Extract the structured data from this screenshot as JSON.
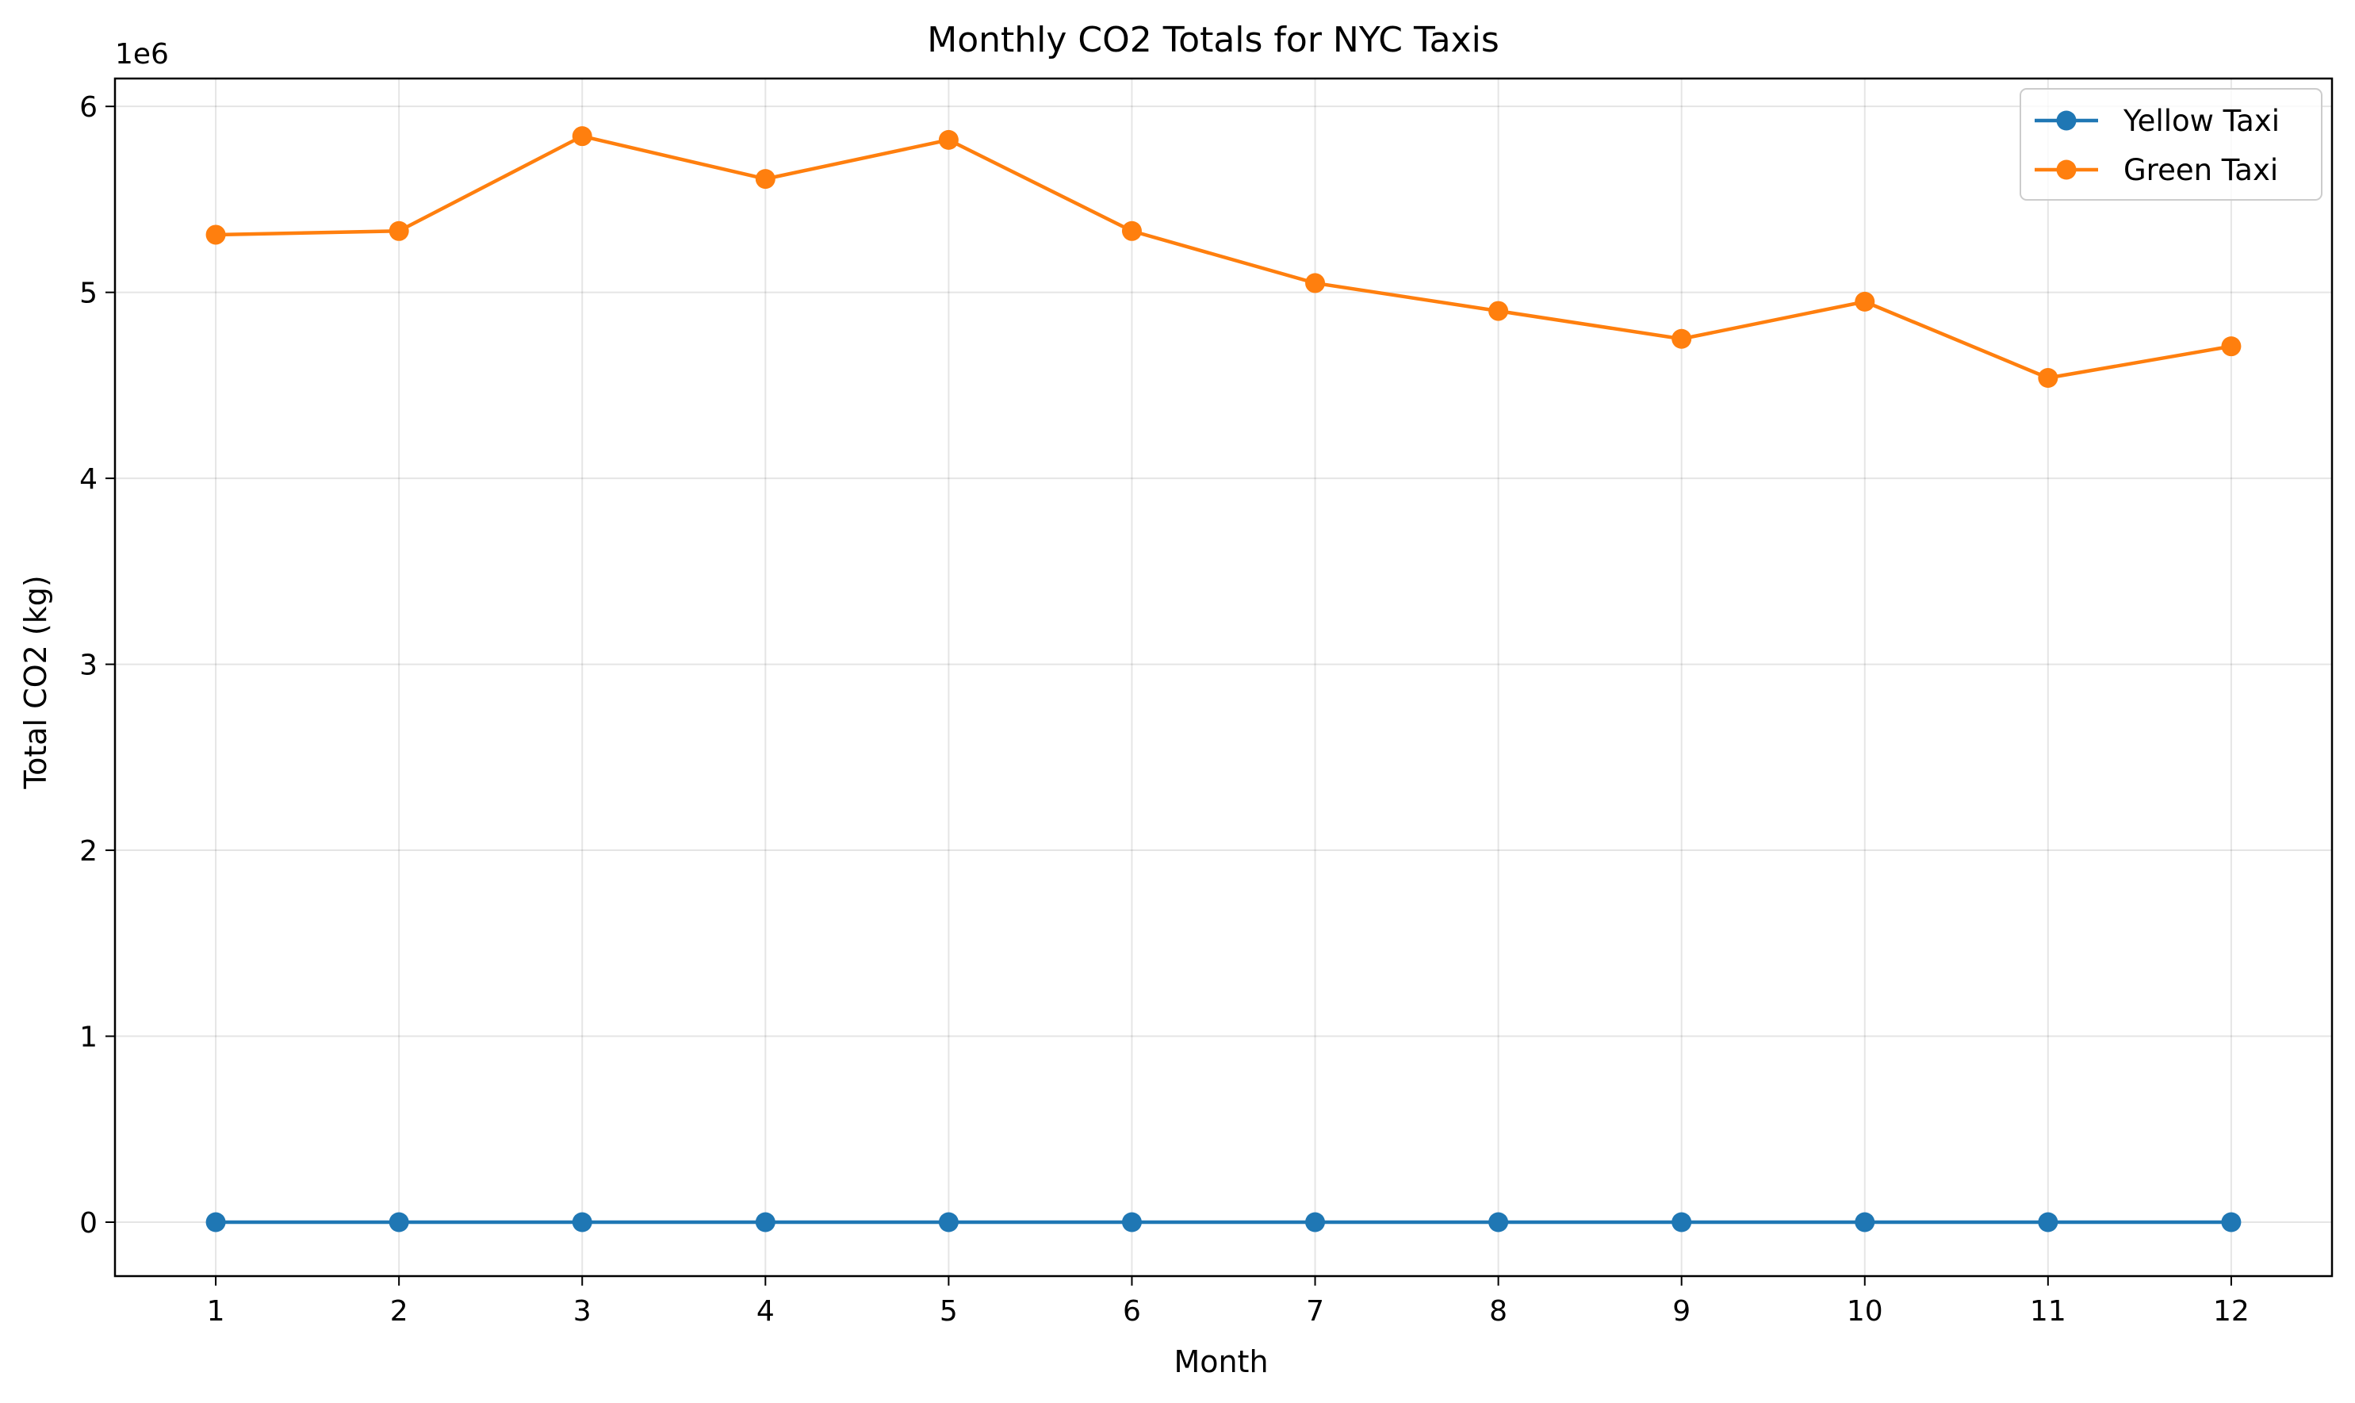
{
  "chart_data": {
    "type": "line",
    "title": "Monthly CO2 Totals for NYC Taxis",
    "xlabel": "Month",
    "ylabel": "Total CO2 (kg)",
    "y_offset_label": "1e6",
    "x": [
      1,
      2,
      3,
      4,
      5,
      6,
      7,
      8,
      9,
      10,
      11,
      12
    ],
    "x_tick_labels": [
      "1",
      "2",
      "3",
      "4",
      "5",
      "6",
      "7",
      "8",
      "9",
      "10",
      "11",
      "12"
    ],
    "y_ticks": [
      0,
      1000000,
      2000000,
      3000000,
      4000000,
      5000000,
      6000000
    ],
    "y_tick_labels": [
      "0",
      "1",
      "2",
      "3",
      "4",
      "5",
      "6"
    ],
    "xlim": [
      0.45,
      12.55
    ],
    "ylim": [
      -290000,
      6150000
    ],
    "grid": true,
    "legend_position": "top-right",
    "series": [
      {
        "name": "Yellow Taxi",
        "color": "#1f77b4",
        "marker": "circle",
        "values": [
          0,
          0,
          0,
          0,
          0,
          0,
          0,
          0,
          0,
          0,
          0,
          0
        ]
      },
      {
        "name": "Green Taxi",
        "color": "#ff7f0e",
        "marker": "circle",
        "values": [
          5310000,
          5330000,
          5840000,
          5610000,
          5820000,
          5330000,
          5050000,
          4900000,
          4750000,
          4950000,
          4540000,
          4710000
        ]
      }
    ]
  }
}
